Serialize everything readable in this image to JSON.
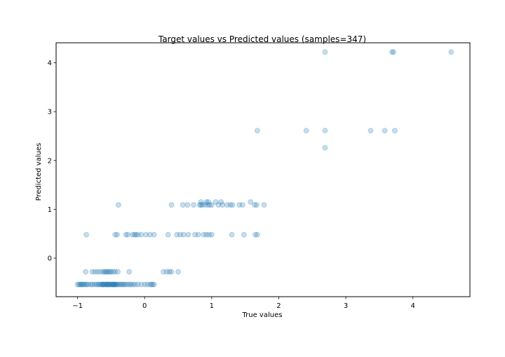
{
  "chart_data": {
    "type": "scatter",
    "title": "Target values vs Predicted values (samples=347)",
    "xlabel": "True values",
    "ylabel": "Predicted values",
    "xlim": [
      -1.32,
      4.85
    ],
    "ylim": [
      -0.79,
      4.41
    ],
    "xticks": [
      -1,
      0,
      1,
      2,
      3,
      4
    ],
    "yticks": [
      0,
      1,
      2,
      3,
      4
    ],
    "grid": false,
    "marker_color": "#1f77b4",
    "marker_alpha": 0.25,
    "points": [
      [
        -1.0,
        -0.54
      ],
      [
        -0.98,
        -0.54
      ],
      [
        -0.96,
        -0.54
      ],
      [
        -0.95,
        -0.54
      ],
      [
        -0.93,
        -0.54
      ],
      [
        -0.92,
        -0.54
      ],
      [
        -0.9,
        -0.54
      ],
      [
        -0.88,
        -0.54
      ],
      [
        -0.86,
        -0.54
      ],
      [
        -0.84,
        -0.54
      ],
      [
        -0.8,
        -0.54
      ],
      [
        -0.78,
        -0.54
      ],
      [
        -0.75,
        -0.54
      ],
      [
        -0.72,
        -0.54
      ],
      [
        -0.7,
        -0.54
      ],
      [
        -0.68,
        -0.54
      ],
      [
        -0.66,
        -0.54
      ],
      [
        -0.64,
        -0.54
      ],
      [
        -0.62,
        -0.54
      ],
      [
        -0.6,
        -0.54
      ],
      [
        -0.58,
        -0.54
      ],
      [
        -0.56,
        -0.54
      ],
      [
        -0.55,
        -0.54
      ],
      [
        -0.54,
        -0.54
      ],
      [
        -0.52,
        -0.54
      ],
      [
        -0.5,
        -0.54
      ],
      [
        -0.49,
        -0.54
      ],
      [
        -0.48,
        -0.54
      ],
      [
        -0.46,
        -0.54
      ],
      [
        -0.45,
        -0.54
      ],
      [
        -0.44,
        -0.54
      ],
      [
        -0.42,
        -0.54
      ],
      [
        -0.4,
        -0.54
      ],
      [
        -0.38,
        -0.54
      ],
      [
        -0.36,
        -0.54
      ],
      [
        -0.34,
        -0.54
      ],
      [
        -0.32,
        -0.54
      ],
      [
        -0.3,
        -0.54
      ],
      [
        -0.28,
        -0.54
      ],
      [
        -0.25,
        -0.54
      ],
      [
        -0.22,
        -0.54
      ],
      [
        -0.2,
        -0.54
      ],
      [
        -0.17,
        -0.54
      ],
      [
        -0.14,
        -0.54
      ],
      [
        -0.1,
        -0.54
      ],
      [
        -0.05,
        -0.54
      ],
      [
        0.0,
        -0.54
      ],
      [
        0.04,
        -0.54
      ],
      [
        0.08,
        -0.54
      ],
      [
        0.1,
        -0.54
      ],
      [
        0.12,
        -0.54
      ],
      [
        0.14,
        -0.54
      ],
      [
        -0.57,
        -0.54
      ],
      [
        -0.53,
        -0.54
      ],
      [
        -0.47,
        -0.54
      ],
      [
        -0.43,
        -0.54
      ],
      [
        -0.63,
        -0.54
      ],
      [
        -0.61,
        -0.54
      ],
      [
        -0.88,
        -0.28
      ],
      [
        -0.78,
        -0.28
      ],
      [
        -0.74,
        -0.28
      ],
      [
        -0.7,
        -0.28
      ],
      [
        -0.66,
        -0.28
      ],
      [
        -0.62,
        -0.28
      ],
      [
        -0.6,
        -0.28
      ],
      [
        -0.58,
        -0.28
      ],
      [
        -0.56,
        -0.28
      ],
      [
        -0.54,
        -0.28
      ],
      [
        -0.52,
        -0.28
      ],
      [
        -0.5,
        -0.28
      ],
      [
        -0.47,
        -0.28
      ],
      [
        -0.44,
        -0.28
      ],
      [
        -0.4,
        -0.28
      ],
      [
        -0.23,
        -0.28
      ],
      [
        0.28,
        -0.28
      ],
      [
        0.33,
        -0.28
      ],
      [
        0.37,
        -0.28
      ],
      [
        0.4,
        -0.28
      ],
      [
        0.5,
        -0.28
      ],
      [
        -0.87,
        0.48
      ],
      [
        -0.44,
        0.48
      ],
      [
        -0.41,
        0.48
      ],
      [
        -0.28,
        0.48
      ],
      [
        -0.25,
        0.48
      ],
      [
        -0.18,
        0.48
      ],
      [
        -0.15,
        0.48
      ],
      [
        -0.13,
        0.48
      ],
      [
        -0.1,
        0.48
      ],
      [
        -0.05,
        0.48
      ],
      [
        0.02,
        0.48
      ],
      [
        0.08,
        0.48
      ],
      [
        0.14,
        0.48
      ],
      [
        0.35,
        0.48
      ],
      [
        0.48,
        0.48
      ],
      [
        0.53,
        0.48
      ],
      [
        0.58,
        0.48
      ],
      [
        0.65,
        0.48
      ],
      [
        0.75,
        0.48
      ],
      [
        0.8,
        0.48
      ],
      [
        0.88,
        0.48
      ],
      [
        0.92,
        0.48
      ],
      [
        0.96,
        0.48
      ],
      [
        1.0,
        0.48
      ],
      [
        1.3,
        0.48
      ],
      [
        1.48,
        0.48
      ],
      [
        1.65,
        0.48
      ],
      [
        1.68,
        0.48
      ],
      [
        -0.39,
        1.09
      ],
      [
        0.4,
        1.09
      ],
      [
        0.57,
        1.09
      ],
      [
        0.64,
        1.09
      ],
      [
        0.73,
        1.09
      ],
      [
        0.82,
        1.09
      ],
      [
        0.84,
        1.09
      ],
      [
        0.86,
        1.09
      ],
      [
        0.9,
        1.09
      ],
      [
        0.94,
        1.09
      ],
      [
        0.97,
        1.09
      ],
      [
        1.0,
        1.09
      ],
      [
        1.1,
        1.09
      ],
      [
        1.16,
        1.09
      ],
      [
        1.23,
        1.09
      ],
      [
        1.28,
        1.09
      ],
      [
        1.31,
        1.09
      ],
      [
        1.41,
        1.09
      ],
      [
        1.46,
        1.09
      ],
      [
        1.64,
        1.09
      ],
      [
        1.67,
        1.09
      ],
      [
        1.78,
        1.09
      ],
      [
        0.84,
        1.15
      ],
      [
        0.92,
        1.15
      ],
      [
        0.95,
        1.15
      ],
      [
        1.06,
        1.15
      ],
      [
        1.14,
        1.15
      ],
      [
        1.58,
        1.15
      ],
      [
        1.68,
        2.61
      ],
      [
        2.41,
        2.61
      ],
      [
        2.69,
        2.61
      ],
      [
        3.37,
        2.61
      ],
      [
        3.58,
        2.61
      ],
      [
        3.73,
        2.61
      ],
      [
        2.69,
        2.26
      ],
      [
        2.69,
        4.22
      ],
      [
        3.69,
        4.22
      ],
      [
        3.71,
        4.22
      ],
      [
        4.57,
        4.22
      ]
    ]
  }
}
